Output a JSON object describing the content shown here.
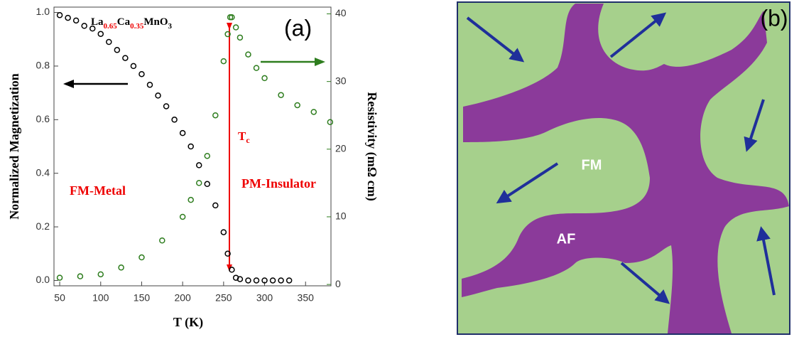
{
  "chart_data": {
    "type": "scatter",
    "xlabel": "T (K)",
    "ylabel": "Normalized Magnetization",
    "y2label": "Resistivity (mΩ cm)",
    "xlim": [
      43,
      381
    ],
    "xticks": [
      50,
      100,
      150,
      200,
      250,
      300,
      350
    ],
    "ylim": [
      -0.02,
      1.02
    ],
    "yticks": [
      {
        "value": 0,
        "label": "0.0"
      },
      {
        "value": 0.2,
        "label": "0.2"
      },
      {
        "value": 0.4,
        "label": "0.4"
      },
      {
        "value": 0.6,
        "label": "0.6"
      },
      {
        "value": 0.8,
        "label": "0.8"
      },
      {
        "value": 1,
        "label": "1.0"
      }
    ],
    "y2lim": [
      -0.2,
      41
    ],
    "y2ticks": [
      0,
      10,
      20,
      30,
      40
    ],
    "series": [
      {
        "color": "#000000",
        "axis": "y",
        "x": [
          50,
          60,
          70,
          80,
          90,
          100,
          110,
          120,
          130,
          140,
          150,
          160,
          170,
          180,
          190,
          200,
          210,
          220,
          230,
          240,
          250,
          255,
          260,
          265,
          270,
          280,
          290,
          300,
          310,
          320,
          330
        ],
        "values": [
          0.99,
          0.98,
          0.97,
          0.95,
          0.94,
          0.92,
          0.89,
          0.86,
          0.83,
          0.8,
          0.77,
          0.73,
          0.69,
          0.65,
          0.6,
          0.55,
          0.5,
          0.43,
          0.36,
          0.28,
          0.18,
          0.1,
          0.04,
          0.01,
          0.005,
          0,
          0,
          0,
          0,
          0,
          0
        ]
      },
      {
        "color": "#2e7d1e",
        "axis": "y2",
        "x": [
          50,
          75,
          100,
          125,
          150,
          175,
          200,
          210,
          220,
          230,
          240,
          250,
          255,
          258,
          260,
          265,
          270,
          280,
          290,
          300,
          320,
          340,
          360,
          380
        ],
        "values": [
          1,
          1.2,
          1.5,
          2.5,
          4,
          6.5,
          10,
          12.5,
          15,
          19,
          25,
          33,
          37,
          39.5,
          39.5,
          38,
          36.5,
          34,
          32,
          30.5,
          28,
          26.5,
          25.5,
          24
        ]
      }
    ],
    "annotations": {
      "formula": [
        "La",
        "0.65",
        "Ca",
        "0.35",
        "MnO",
        "3"
      ],
      "panel": "(a)",
      "tc": [
        "T",
        "c"
      ],
      "left_region": "FM-Metal",
      "right_region": "PM-Insulator"
    }
  },
  "diagram": {
    "panel": "(b)",
    "fm": "FM",
    "af": "AF"
  }
}
